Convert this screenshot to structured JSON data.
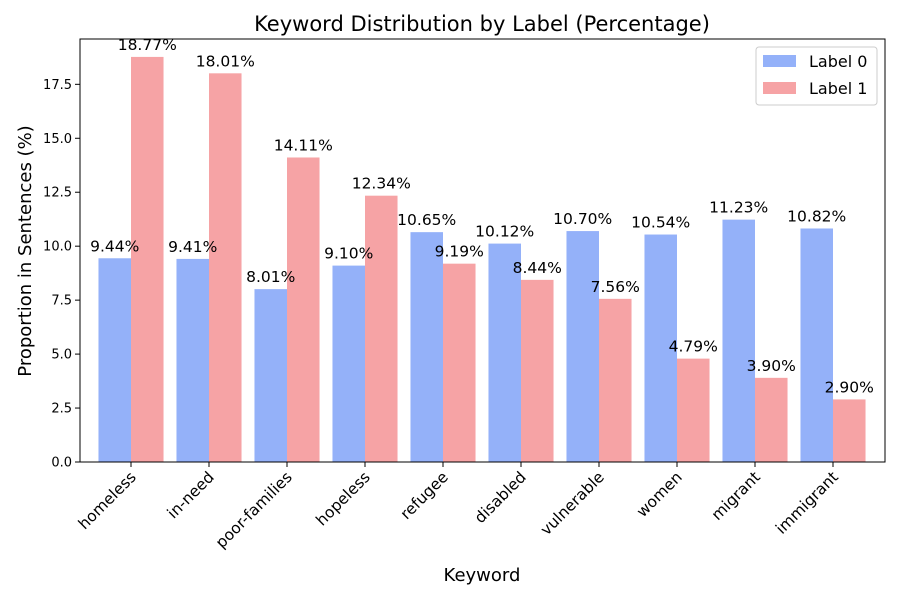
{
  "chart_data": {
    "type": "bar",
    "title": "Keyword Distribution by Label (Percentage)",
    "xlabel": "Keyword",
    "ylabel": "Proportion in Sentences (%)",
    "categories": [
      "homeless",
      "in-need",
      "poor-families",
      "hopeless",
      "refugee",
      "disabled",
      "vulnerable",
      "women",
      "migrant",
      "immigrant"
    ],
    "series": [
      {
        "name": "Label 0",
        "color": "#94b1f9",
        "values": [
          9.44,
          9.41,
          8.01,
          9.1,
          10.65,
          10.12,
          10.7,
          10.54,
          11.23,
          10.82
        ],
        "labels": [
          "9.44%",
          "9.41%",
          "8.01%",
          "9.10%",
          "10.65%",
          "10.12%",
          "10.70%",
          "10.54%",
          "11.23%",
          "10.82%"
        ]
      },
      {
        "name": "Label 1",
        "color": "#f6a3a5",
        "values": [
          18.77,
          18.01,
          14.11,
          12.34,
          9.19,
          8.44,
          7.56,
          4.79,
          3.9,
          2.9
        ],
        "labels": [
          "18.77%",
          "18.01%",
          "14.11%",
          "12.34%",
          "9.19%",
          "8.44%",
          "7.56%",
          "4.79%",
          "3.90%",
          "2.90%"
        ]
      }
    ],
    "ylim": [
      0,
      19.6
    ],
    "yticks": [
      0.0,
      2.5,
      5.0,
      7.5,
      10.0,
      12.5,
      15.0,
      17.5
    ],
    "ytick_labels": [
      "0.0",
      "2.5",
      "5.0",
      "7.5",
      "10.0",
      "12.5",
      "15.0",
      "17.5"
    ],
    "legend_position": "top-right",
    "grid": false
  }
}
